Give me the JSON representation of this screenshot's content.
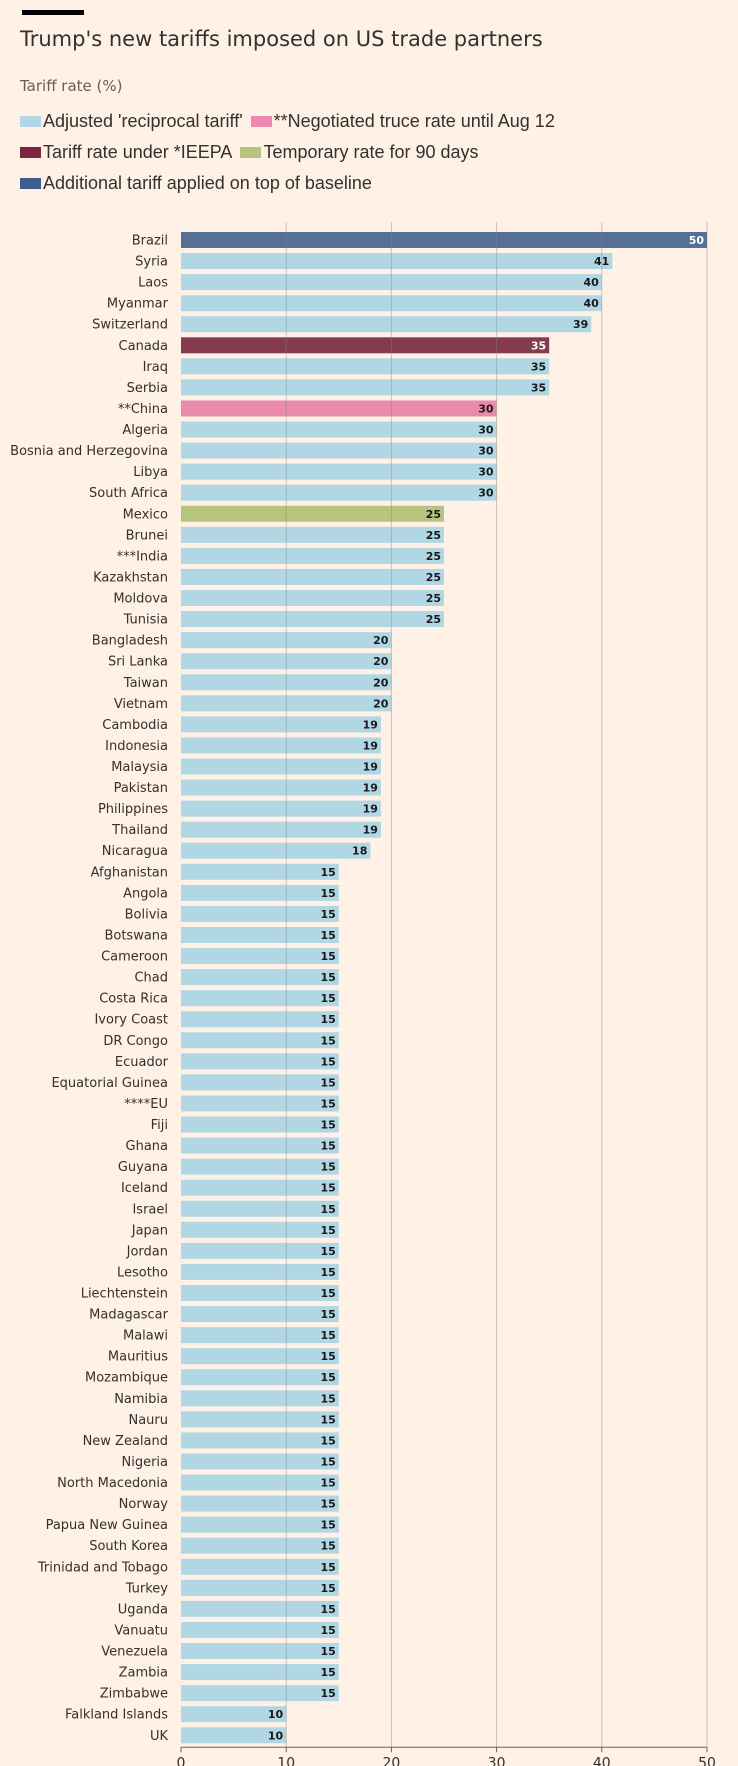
{
  "title": "Trump's new tariffs imposed on US trade partners",
  "subtitle": "Tariff rate (%)",
  "legend": [
    [
      {
        "label": "Adjusted 'reciprocal tariff'",
        "color": "#b2d7e4"
      },
      {
        "label": "**Negotiated truce rate until Aug 12",
        "color": "#ee8aad"
      }
    ],
    [
      {
        "label": "Tariff rate under *IEEPA",
        "color": "#7f2440"
      },
      {
        "label": "Temporary rate for 90 days",
        "color": "#b4c47e"
      }
    ],
    [
      {
        "label": "Additional tariff applied on top of baseline",
        "color": "#3f5e8c"
      }
    ]
  ],
  "chart_data": {
    "type": "bar",
    "orientation": "horizontal",
    "title": "Trump's new tariffs imposed on US trade partners",
    "subtitle": "Tariff rate (%)",
    "xlim": [
      0,
      50
    ],
    "xticks": [
      0,
      10,
      20,
      30,
      40,
      50
    ],
    "grid": true,
    "legend_position": "top",
    "bar_colors": {
      "reciprocal": "#b2d7e4",
      "truce": "#e88aab",
      "ieepa": "#843a4f",
      "temporary": "#b6c57d",
      "baseline": "#566f97"
    },
    "bars": [
      {
        "label": "Brazil",
        "value": 50,
        "group": "baseline"
      },
      {
        "label": "Syria",
        "value": 41,
        "group": "reciprocal"
      },
      {
        "label": "Laos",
        "value": 40,
        "group": "reciprocal"
      },
      {
        "label": "Myanmar",
        "value": 40,
        "group": "reciprocal"
      },
      {
        "label": "Switzerland",
        "value": 39,
        "group": "reciprocal"
      },
      {
        "label": "Canada",
        "value": 35,
        "group": "ieepa"
      },
      {
        "label": "Iraq",
        "value": 35,
        "group": "reciprocal"
      },
      {
        "label": "Serbia",
        "value": 35,
        "group": "reciprocal"
      },
      {
        "label": "**China",
        "value": 30,
        "group": "truce"
      },
      {
        "label": "Algeria",
        "value": 30,
        "group": "reciprocal"
      },
      {
        "label": "Bosnia and Herzegovina",
        "value": 30,
        "group": "reciprocal"
      },
      {
        "label": "Libya",
        "value": 30,
        "group": "reciprocal"
      },
      {
        "label": "South Africa",
        "value": 30,
        "group": "reciprocal"
      },
      {
        "label": "Mexico",
        "value": 25,
        "group": "temporary"
      },
      {
        "label": "Brunei",
        "value": 25,
        "group": "reciprocal"
      },
      {
        "label": "***India",
        "value": 25,
        "group": "reciprocal"
      },
      {
        "label": "Kazakhstan",
        "value": 25,
        "group": "reciprocal"
      },
      {
        "label": "Moldova",
        "value": 25,
        "group": "reciprocal"
      },
      {
        "label": "Tunisia",
        "value": 25,
        "group": "reciprocal"
      },
      {
        "label": "Bangladesh",
        "value": 20,
        "group": "reciprocal"
      },
      {
        "label": "Sri Lanka",
        "value": 20,
        "group": "reciprocal"
      },
      {
        "label": "Taiwan",
        "value": 20,
        "group": "reciprocal"
      },
      {
        "label": "Vietnam",
        "value": 20,
        "group": "reciprocal"
      },
      {
        "label": "Cambodia",
        "value": 19,
        "group": "reciprocal"
      },
      {
        "label": "Indonesia",
        "value": 19,
        "group": "reciprocal"
      },
      {
        "label": "Malaysia",
        "value": 19,
        "group": "reciprocal"
      },
      {
        "label": "Pakistan",
        "value": 19,
        "group": "reciprocal"
      },
      {
        "label": "Philippines",
        "value": 19,
        "group": "reciprocal"
      },
      {
        "label": "Thailand",
        "value": 19,
        "group": "reciprocal"
      },
      {
        "label": "Nicaragua",
        "value": 18,
        "group": "reciprocal"
      },
      {
        "label": "Afghanistan",
        "value": 15,
        "group": "reciprocal"
      },
      {
        "label": "Angola",
        "value": 15,
        "group": "reciprocal"
      },
      {
        "label": "Bolivia",
        "value": 15,
        "group": "reciprocal"
      },
      {
        "label": "Botswana",
        "value": 15,
        "group": "reciprocal"
      },
      {
        "label": "Cameroon",
        "value": 15,
        "group": "reciprocal"
      },
      {
        "label": "Chad",
        "value": 15,
        "group": "reciprocal"
      },
      {
        "label": "Costa Rica",
        "value": 15,
        "group": "reciprocal"
      },
      {
        "label": "Ivory Coast",
        "value": 15,
        "group": "reciprocal"
      },
      {
        "label": "DR Congo",
        "value": 15,
        "group": "reciprocal"
      },
      {
        "label": "Ecuador",
        "value": 15,
        "group": "reciprocal"
      },
      {
        "label": "Equatorial Guinea",
        "value": 15,
        "group": "reciprocal"
      },
      {
        "label": "****EU",
        "value": 15,
        "group": "reciprocal"
      },
      {
        "label": "Fiji",
        "value": 15,
        "group": "reciprocal"
      },
      {
        "label": "Ghana",
        "value": 15,
        "group": "reciprocal"
      },
      {
        "label": "Guyana",
        "value": 15,
        "group": "reciprocal"
      },
      {
        "label": "Iceland",
        "value": 15,
        "group": "reciprocal"
      },
      {
        "label": "Israel",
        "value": 15,
        "group": "reciprocal"
      },
      {
        "label": "Japan",
        "value": 15,
        "group": "reciprocal"
      },
      {
        "label": "Jordan",
        "value": 15,
        "group": "reciprocal"
      },
      {
        "label": "Lesotho",
        "value": 15,
        "group": "reciprocal"
      },
      {
        "label": "Liechtenstein",
        "value": 15,
        "group": "reciprocal"
      },
      {
        "label": "Madagascar",
        "value": 15,
        "group": "reciprocal"
      },
      {
        "label": "Malawi",
        "value": 15,
        "group": "reciprocal"
      },
      {
        "label": "Mauritius",
        "value": 15,
        "group": "reciprocal"
      },
      {
        "label": "Mozambique",
        "value": 15,
        "group": "reciprocal"
      },
      {
        "label": "Namibia",
        "value": 15,
        "group": "reciprocal"
      },
      {
        "label": "Nauru",
        "value": 15,
        "group": "reciprocal"
      },
      {
        "label": "New Zealand",
        "value": 15,
        "group": "reciprocal"
      },
      {
        "label": "Nigeria",
        "value": 15,
        "group": "reciprocal"
      },
      {
        "label": "North Macedonia",
        "value": 15,
        "group": "reciprocal"
      },
      {
        "label": "Norway",
        "value": 15,
        "group": "reciprocal"
      },
      {
        "label": "Papua New Guinea",
        "value": 15,
        "group": "reciprocal"
      },
      {
        "label": "South Korea",
        "value": 15,
        "group": "reciprocal"
      },
      {
        "label": "Trinidad and Tobago",
        "value": 15,
        "group": "reciprocal"
      },
      {
        "label": "Turkey",
        "value": 15,
        "group": "reciprocal"
      },
      {
        "label": "Uganda",
        "value": 15,
        "group": "reciprocal"
      },
      {
        "label": "Vanuatu",
        "value": 15,
        "group": "reciprocal"
      },
      {
        "label": "Venezuela",
        "value": 15,
        "group": "reciprocal"
      },
      {
        "label": "Zambia",
        "value": 15,
        "group": "reciprocal"
      },
      {
        "label": "Zimbabwe",
        "value": 15,
        "group": "reciprocal"
      },
      {
        "label": "Falkland Islands",
        "value": 10,
        "group": "reciprocal"
      },
      {
        "label": "UK",
        "value": 10,
        "group": "reciprocal"
      }
    ]
  }
}
